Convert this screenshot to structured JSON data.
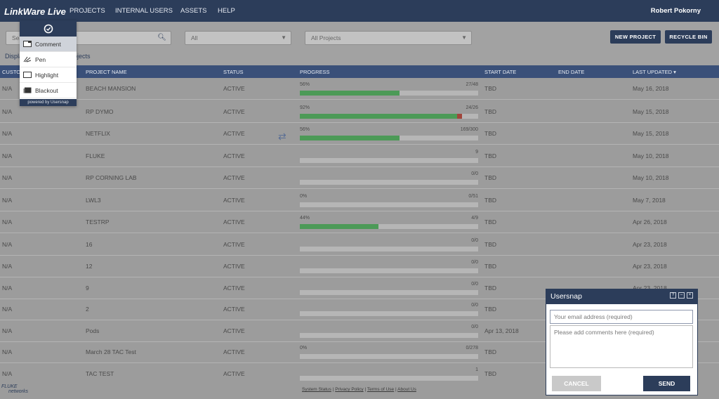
{
  "app": {
    "logo": "LinkWare Live",
    "nav": [
      "PROJECTS",
      "INTERNAL USERS",
      "ASSETS",
      "HELP"
    ],
    "user": "Robert Pokorny"
  },
  "filters": {
    "search_placeholder": "Sea",
    "status_select": "All",
    "project_select": "All Projects",
    "new_project": "NEW PROJECT",
    "recycle_bin": "RECYCLE BIN",
    "display_left": "Displa",
    "display_right": "ojects"
  },
  "table": {
    "headers": {
      "customer": "CUSTO",
      "project_name": "PROJECT NAME",
      "status": "STATUS",
      "progress": "PROGRESS",
      "start_date": "START DATE",
      "end_date": "END DATE",
      "last_updated": "LAST UPDATED ▾"
    },
    "rows": [
      {
        "customer": "N/A",
        "name": "BEACH MANSION",
        "status": "ACTIVE",
        "pct_label": "56%",
        "frac": "27/48",
        "fill": 0.56,
        "red": 0,
        "start": "TBD",
        "updated": "May 16, 2018"
      },
      {
        "customer": "N/A",
        "name": "RP DYMO",
        "status": "ACTIVE",
        "pct_label": "92%",
        "frac": "24/26",
        "fill": 0.88,
        "red": 0.03,
        "start": "TBD",
        "updated": "May 15, 2018"
      },
      {
        "customer": "N/A",
        "name": "NETFLIX",
        "status": "ACTIVE",
        "pct_label": "56%",
        "frac": "169/300",
        "fill": 0.56,
        "red": 0,
        "start": "TBD",
        "updated": "May 15, 2018"
      },
      {
        "customer": "N/A",
        "name": "FLUKE",
        "status": "ACTIVE",
        "pct_label": "",
        "frac": "9",
        "fill": 0,
        "red": 0,
        "start": "TBD",
        "updated": "May 10, 2018"
      },
      {
        "customer": "N/A",
        "name": "RP CORNING LAB",
        "status": "ACTIVE",
        "pct_label": "",
        "frac": "0/0",
        "fill": 0,
        "red": 0,
        "start": "TBD",
        "updated": "May 10, 2018"
      },
      {
        "customer": "N/A",
        "name": "LWL3",
        "status": "ACTIVE",
        "pct_label": "0%",
        "frac": "0/51",
        "fill": 0,
        "red": 0,
        "start": "TBD",
        "updated": "May 7, 2018"
      },
      {
        "customer": "N/A",
        "name": "TESTRP",
        "status": "ACTIVE",
        "pct_label": "44%",
        "frac": "4/9",
        "fill": 0.44,
        "red": 0,
        "start": "TBD",
        "updated": "Apr 26, 2018"
      },
      {
        "customer": "N/A",
        "name": "16",
        "status": "ACTIVE",
        "pct_label": "",
        "frac": "0/0",
        "fill": 0,
        "red": 0,
        "start": "TBD",
        "updated": "Apr 23, 2018"
      },
      {
        "customer": "N/A",
        "name": "12",
        "status": "ACTIVE",
        "pct_label": "",
        "frac": "0/0",
        "fill": 0,
        "red": 0,
        "start": "TBD",
        "updated": "Apr 23, 2018"
      },
      {
        "customer": "N/A",
        "name": "9",
        "status": "ACTIVE",
        "pct_label": "",
        "frac": "0/0",
        "fill": 0,
        "red": 0,
        "start": "TBD",
        "updated": "Apr 23, 2018"
      },
      {
        "customer": "N/A",
        "name": "2",
        "status": "ACTIVE",
        "pct_label": "",
        "frac": "0/0",
        "fill": 0,
        "red": 0,
        "start": "TBD",
        "updated": ""
      },
      {
        "customer": "N/A",
        "name": "Pods",
        "status": "ACTIVE",
        "pct_label": "",
        "frac": "0/0",
        "fill": 0,
        "red": 0,
        "start": "Apr 13, 2018",
        "updated": ""
      },
      {
        "customer": "N/A",
        "name": "March 28 TAC Test",
        "status": "ACTIVE",
        "pct_label": "0%",
        "frac": "0/278",
        "fill": 0,
        "red": 0,
        "start": "TBD",
        "updated": ""
      },
      {
        "customer": "N/A",
        "name": "TAC TEST",
        "status": "ACTIVE",
        "pct_label": "",
        "frac": "1",
        "fill": 0,
        "red": 0,
        "start": "TBD",
        "updated": ""
      }
    ]
  },
  "footer": {
    "logo_top": "FLUKE",
    "logo_bottom": "networks",
    "links": [
      "System Status",
      "Privacy Policy",
      "Terms of Use",
      "About Us"
    ]
  },
  "usersnap_menu": {
    "items": [
      "Comment",
      "Pen",
      "Highlight",
      "Blackout"
    ],
    "powered": "powered by Usersnap"
  },
  "usersnap_panel": {
    "title": "Usersnap",
    "email_placeholder": "Your email address (required)",
    "comment_placeholder": "Please add comments here (required)",
    "cancel": "CANCEL",
    "send": "SEND"
  },
  "colors": {
    "navbar": "#2c3d5a",
    "table_header": "#3a5079",
    "progress_done": "#4c9a57",
    "progress_fail": "#a1453b"
  }
}
